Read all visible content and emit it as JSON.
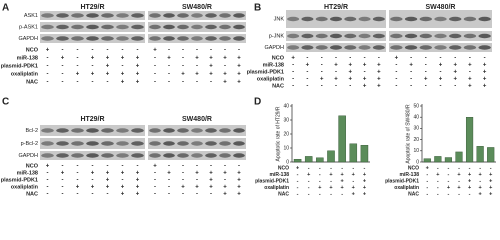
{
  "panels": [
    {
      "label": "A",
      "groups": [
        "HT29/R",
        "SW480/R"
      ],
      "blots": [
        "ASK1",
        "p-ASK1",
        "GAPDH"
      ],
      "treatments": [
        {
          "name": "NCO",
          "signs": [
            "+",
            "-",
            "-",
            "-",
            "-",
            "-",
            "-"
          ]
        },
        {
          "name": "miR-138",
          "signs": [
            "-",
            "+",
            "-",
            "+",
            "+",
            "+",
            "+"
          ]
        },
        {
          "name": "plasmid-PDK1",
          "signs": [
            "-",
            "-",
            "-",
            "-",
            "+",
            "-",
            "+"
          ]
        },
        {
          "name": "oxaliplatin",
          "signs": [
            "-",
            "-",
            "+",
            "+",
            "+",
            "+",
            "+"
          ]
        },
        {
          "name": "NAC",
          "signs": [
            "-",
            "-",
            "-",
            "-",
            "-",
            "+",
            "+"
          ]
        }
      ]
    },
    {
      "label": "B",
      "groups": [
        "HT29/R",
        "SW480/R"
      ],
      "blots": [
        "JNK",
        "p-JNK",
        "GAPDH"
      ],
      "treatments": [
        {
          "name": "NCO",
          "signs": [
            "+",
            "-",
            "-",
            "-",
            "-",
            "-",
            "-"
          ]
        },
        {
          "name": "miR-138",
          "signs": [
            "-",
            "+",
            "-",
            "+",
            "+",
            "+",
            "+"
          ]
        },
        {
          "name": "plasmid-PDK1",
          "signs": [
            "-",
            "-",
            "-",
            "-",
            "+",
            "-",
            "+"
          ]
        },
        {
          "name": "oxaliplatin",
          "signs": [
            "-",
            "-",
            "+",
            "+",
            "+",
            "+",
            "+"
          ]
        },
        {
          "name": "NAC",
          "signs": [
            "-",
            "-",
            "-",
            "-",
            "-",
            "+",
            "+"
          ]
        }
      ]
    },
    {
      "label": "C",
      "groups": [
        "HT29/R",
        "SW480/R"
      ],
      "blots": [
        "Bcl-2",
        "p-Bcl-2",
        "GAPDH"
      ],
      "treatments": [
        {
          "name": "NCO",
          "signs": [
            "+",
            "-",
            "-",
            "-",
            "-",
            "-",
            "-"
          ]
        },
        {
          "name": "miR-138",
          "signs": [
            "-",
            "+",
            "-",
            "+",
            "+",
            "+",
            "+"
          ]
        },
        {
          "name": "plasmid-PDK1",
          "signs": [
            "-",
            "-",
            "-",
            "-",
            "+",
            "-",
            "+"
          ]
        },
        {
          "name": "oxaliplatin",
          "signs": [
            "-",
            "-",
            "+",
            "+",
            "+",
            "+",
            "+"
          ]
        },
        {
          "name": "NAC",
          "signs": [
            "-",
            "-",
            "-",
            "-",
            "-",
            "+",
            "+"
          ]
        }
      ]
    }
  ],
  "chart_label": "D",
  "chart_data": [
    {
      "type": "bar",
      "y_label": "Apoptotic rate of HT29/R",
      "values": [
        2,
        4,
        3,
        8,
        33,
        13,
        12
      ],
      "color": "#5b8c5a",
      "ylim": [
        0,
        40
      ],
      "yticks": [
        0,
        10,
        20,
        30,
        40
      ],
      "treatments": [
        {
          "name": "NCO",
          "signs": [
            "+",
            "-",
            "-",
            "-",
            "-",
            "-",
            "-"
          ]
        },
        {
          "name": "miR-138",
          "signs": [
            "-",
            "+",
            "-",
            "+",
            "+",
            "+",
            "+"
          ]
        },
        {
          "name": "plasmid-PDK1",
          "signs": [
            "-",
            "-",
            "-",
            "-",
            "+",
            "-",
            "+"
          ]
        },
        {
          "name": "oxaliplatin",
          "signs": [
            "-",
            "-",
            "+",
            "+",
            "+",
            "+",
            "+"
          ]
        },
        {
          "name": "NAC",
          "signs": [
            "-",
            "-",
            "-",
            "-",
            "-",
            "+",
            "+"
          ]
        }
      ]
    },
    {
      "type": "bar",
      "y_label": "Apoptotic rate of SW480/R",
      "values": [
        3,
        5,
        4,
        9,
        40,
        14,
        13
      ],
      "color": "#5b8c5a",
      "ylim": [
        0,
        50
      ],
      "yticks": [
        0,
        10,
        20,
        30,
        40,
        50
      ],
      "treatments": [
        {
          "name": "NCO",
          "signs": [
            "+",
            "-",
            "-",
            "-",
            "-",
            "-",
            "-"
          ]
        },
        {
          "name": "miR-138",
          "signs": [
            "-",
            "+",
            "-",
            "+",
            "+",
            "+",
            "+"
          ]
        },
        {
          "name": "plasmid-PDK1",
          "signs": [
            "-",
            "-",
            "-",
            "-",
            "+",
            "-",
            "+"
          ]
        },
        {
          "name": "oxaliplatin",
          "signs": [
            "-",
            "-",
            "+",
            "+",
            "+",
            "+",
            "+"
          ]
        },
        {
          "name": "NAC",
          "signs": [
            "-",
            "-",
            "-",
            "-",
            "-",
            "+",
            "+"
          ]
        }
      ]
    }
  ]
}
